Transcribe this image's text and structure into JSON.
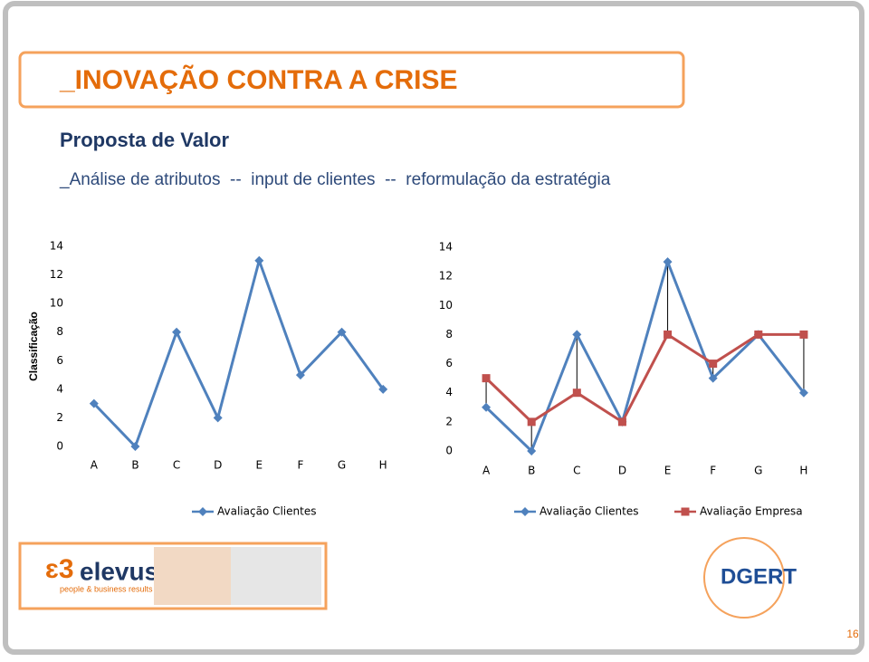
{
  "slide": {
    "title": "_INOVAÇÃO CONTRA A CRISE",
    "heading": "Proposta de Valor",
    "subtitle": "_Análise de atributos  --  input de clientes  --  reformulação da estratégia",
    "logo_left": "elevus",
    "logo_left_tagline": "people & business results",
    "logo_right": "DGERT",
    "page_number": "16"
  },
  "chart_data": [
    {
      "type": "line",
      "ylabel": "Classificação",
      "categories": [
        "A",
        "B",
        "C",
        "D",
        "E",
        "F",
        "G",
        "H"
      ],
      "series": [
        {
          "name": "Avaliação Clientes",
          "color": "#4f81bd",
          "marker": "diamond",
          "values": [
            3,
            0,
            8,
            2,
            13,
            5,
            8,
            4
          ]
        }
      ],
      "ylim": [
        0,
        14
      ],
      "yticks": [
        0,
        2,
        4,
        6,
        8,
        10,
        12,
        14
      ],
      "grid": false
    },
    {
      "type": "line",
      "categories": [
        "A",
        "B",
        "C",
        "D",
        "E",
        "F",
        "G",
        "H"
      ],
      "series": [
        {
          "name": "Avaliação Clientes",
          "color": "#4f81bd",
          "marker": "diamond",
          "values": [
            3,
            0,
            8,
            2,
            13,
            5,
            8,
            4
          ]
        },
        {
          "name": "Avaliação Empresa",
          "color": "#c0504d",
          "marker": "square",
          "values": [
            5,
            2,
            4,
            2,
            8,
            6,
            8,
            8
          ]
        }
      ],
      "hilo_lines": true,
      "ylim": [
        0,
        14
      ],
      "yticks": [
        0,
        2,
        4,
        6,
        8,
        10,
        12,
        14
      ],
      "grid": false
    }
  ]
}
